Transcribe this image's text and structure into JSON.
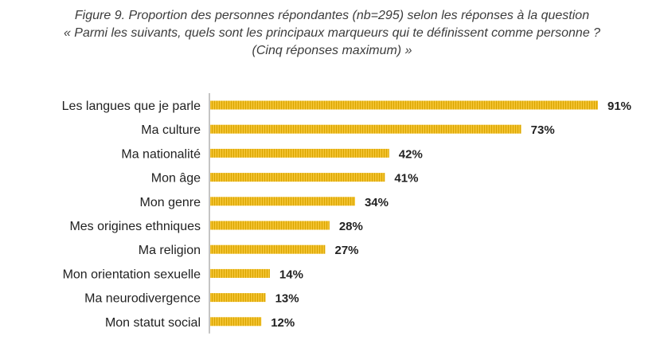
{
  "title": {
    "line1": "Figure 9. Proportion des personnes répondantes (nb=295) selon les réponses à la question",
    "line2": "« Parmi les suivants, quels sont les principaux marqueurs qui te définissent comme personne ?",
    "line3": "(Cinq réponses maximum) »"
  },
  "colors": {
    "bar": "#F2C12E",
    "bar_stripe": "#D9A500",
    "axis": "#8a8a8a"
  },
  "chart_data": {
    "type": "bar",
    "orientation": "horizontal",
    "categories": [
      "Les langues que je parle",
      "Ma culture",
      "Ma nationalité",
      "Mon âge",
      "Mon genre",
      "Mes origines ethniques",
      "Ma religion",
      "Mon orientation sexuelle",
      "Ma neurodivergence",
      "Mon statut social"
    ],
    "values": [
      91,
      73,
      42,
      41,
      34,
      28,
      27,
      14,
      13,
      12
    ],
    "value_labels": [
      "91%",
      "73%",
      "42%",
      "41%",
      "34%",
      "28%",
      "27%",
      "14%",
      "13%",
      "12%"
    ],
    "unit": "%",
    "xlim": [
      0,
      100
    ],
    "grid": false,
    "legend": "none"
  }
}
